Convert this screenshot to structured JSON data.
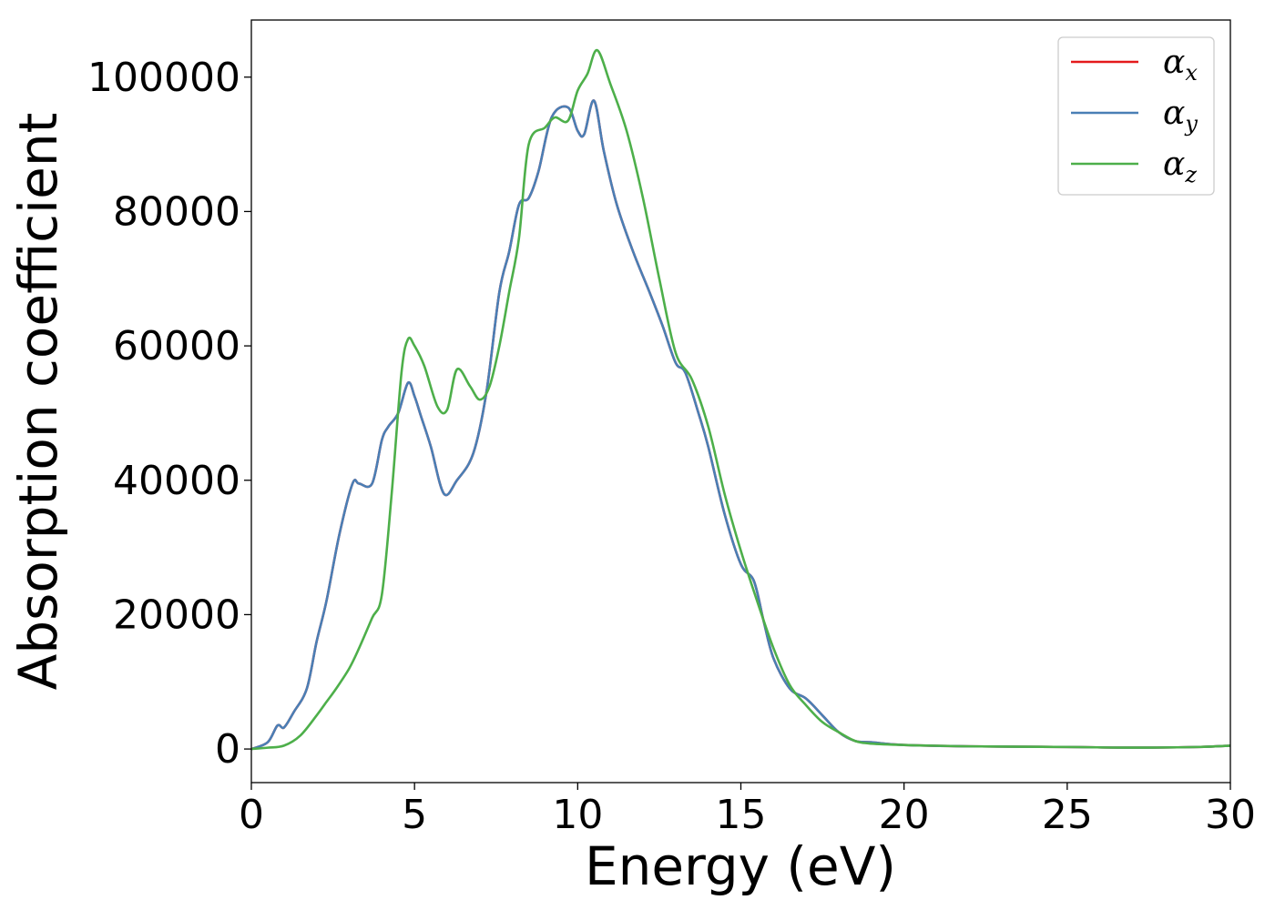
{
  "chart_data": {
    "type": "line",
    "title": "",
    "xlabel": "Energy (eV)",
    "ylabel": "Absorption coefficient",
    "xlim": [
      0,
      30
    ],
    "ylim": [
      -5000,
      108500
    ],
    "xticks": [
      0,
      5,
      10,
      15,
      20,
      25,
      30
    ],
    "yticks": [
      0,
      20000,
      40000,
      60000,
      80000,
      100000
    ],
    "grid": false,
    "legend": "top-right",
    "series": [
      {
        "name": "α",
        "subscript": "x",
        "color": "#e41a1c",
        "x": [
          0,
          0.5,
          0.8,
          1.0,
          1.3,
          1.7,
          2.0,
          2.3,
          2.7,
          3.1,
          3.3,
          3.7,
          4.0,
          4.2,
          4.5,
          4.8,
          5.0,
          5.2,
          5.5,
          5.9,
          6.3,
          6.8,
          7.2,
          7.6,
          7.9,
          8.2,
          8.5,
          8.8,
          9.2,
          9.7,
          10.0,
          10.2,
          10.5,
          10.8,
          11.2,
          11.7,
          12.2,
          12.6,
          13.0,
          13.3,
          13.7,
          14.0,
          14.5,
          15.0,
          15.4,
          15.7,
          16.0,
          16.5,
          17.0,
          17.5,
          18.0,
          18.5,
          19.0,
          20.0,
          22.0,
          25.0,
          27.0,
          29.0,
          30.0
        ],
        "values": [
          0,
          1000,
          3500,
          3200,
          5500,
          9000,
          16000,
          22000,
          32000,
          39500,
          39500,
          39500,
          46000,
          48000,
          50000,
          54500,
          52500,
          49500,
          45000,
          38000,
          40000,
          44000,
          53000,
          68000,
          74000,
          81000,
          82000,
          86000,
          94000,
          95500,
          92000,
          91500,
          96500,
          89000,
          81000,
          74000,
          68000,
          63000,
          57500,
          56000,
          50000,
          45000,
          35000,
          27500,
          25000,
          19000,
          13500,
          9000,
          7500,
          5000,
          2500,
          1200,
          1000,
          600,
          400,
          300,
          200,
          300,
          500
        ]
      },
      {
        "name": "α",
        "subscript": "y",
        "color": "#4a7fb5",
        "x": [
          0,
          0.5,
          0.8,
          1.0,
          1.3,
          1.7,
          2.0,
          2.3,
          2.7,
          3.1,
          3.3,
          3.7,
          4.0,
          4.2,
          4.5,
          4.8,
          5.0,
          5.2,
          5.5,
          5.9,
          6.3,
          6.8,
          7.2,
          7.6,
          7.9,
          8.2,
          8.5,
          8.8,
          9.2,
          9.7,
          10.0,
          10.2,
          10.5,
          10.8,
          11.2,
          11.7,
          12.2,
          12.6,
          13.0,
          13.3,
          13.7,
          14.0,
          14.5,
          15.0,
          15.4,
          15.7,
          16.0,
          16.5,
          17.0,
          17.5,
          18.0,
          18.5,
          19.0,
          20.0,
          22.0,
          25.0,
          27.0,
          29.0,
          30.0
        ],
        "values": [
          0,
          1000,
          3500,
          3200,
          5500,
          9000,
          16000,
          22000,
          32000,
          39500,
          39500,
          39500,
          46000,
          48000,
          50000,
          54500,
          52500,
          49500,
          45000,
          38000,
          40000,
          44000,
          53000,
          68000,
          74000,
          81000,
          82000,
          86000,
          94000,
          95500,
          92000,
          91500,
          96500,
          89000,
          81000,
          74000,
          68000,
          63000,
          57500,
          56000,
          50000,
          45000,
          35000,
          27500,
          25000,
          19000,
          13500,
          9000,
          7500,
          5000,
          2500,
          1200,
          1000,
          600,
          400,
          300,
          200,
          300,
          500
        ]
      },
      {
        "name": "α",
        "subscript": "z",
        "color": "#4daf4a",
        "x": [
          0,
          0.5,
          1.0,
          1.5,
          2.0,
          2.3,
          2.6,
          3.0,
          3.3,
          3.7,
          4.0,
          4.3,
          4.6,
          4.8,
          5.0,
          5.3,
          5.7,
          6.0,
          6.3,
          6.7,
          7.0,
          7.3,
          7.6,
          7.9,
          8.2,
          8.5,
          9.0,
          9.3,
          9.7,
          10.0,
          10.3,
          10.6,
          11.0,
          11.5,
          12.0,
          12.5,
          13.0,
          13.5,
          14.0,
          14.5,
          15.0,
          15.5,
          16.0,
          16.5,
          17.0,
          17.5,
          18.0,
          18.5,
          19.0,
          20.0,
          22.0,
          25.0,
          27.0,
          29.0,
          30.0
        ],
        "values": [
          0,
          200,
          500,
          2000,
          5000,
          7000,
          9000,
          12000,
          15000,
          19500,
          23000,
          38000,
          56000,
          61000,
          60000,
          57000,
          51000,
          50500,
          56500,
          54000,
          52000,
          54000,
          60000,
          68000,
          76000,
          90000,
          92500,
          94000,
          93500,
          98000,
          100500,
          104000,
          99000,
          92000,
          82000,
          70000,
          59000,
          55000,
          48000,
          38000,
          29500,
          22000,
          15000,
          9500,
          6500,
          4000,
          2500,
          1200,
          800,
          600,
          400,
          300,
          200,
          300,
          500
        ]
      }
    ]
  }
}
